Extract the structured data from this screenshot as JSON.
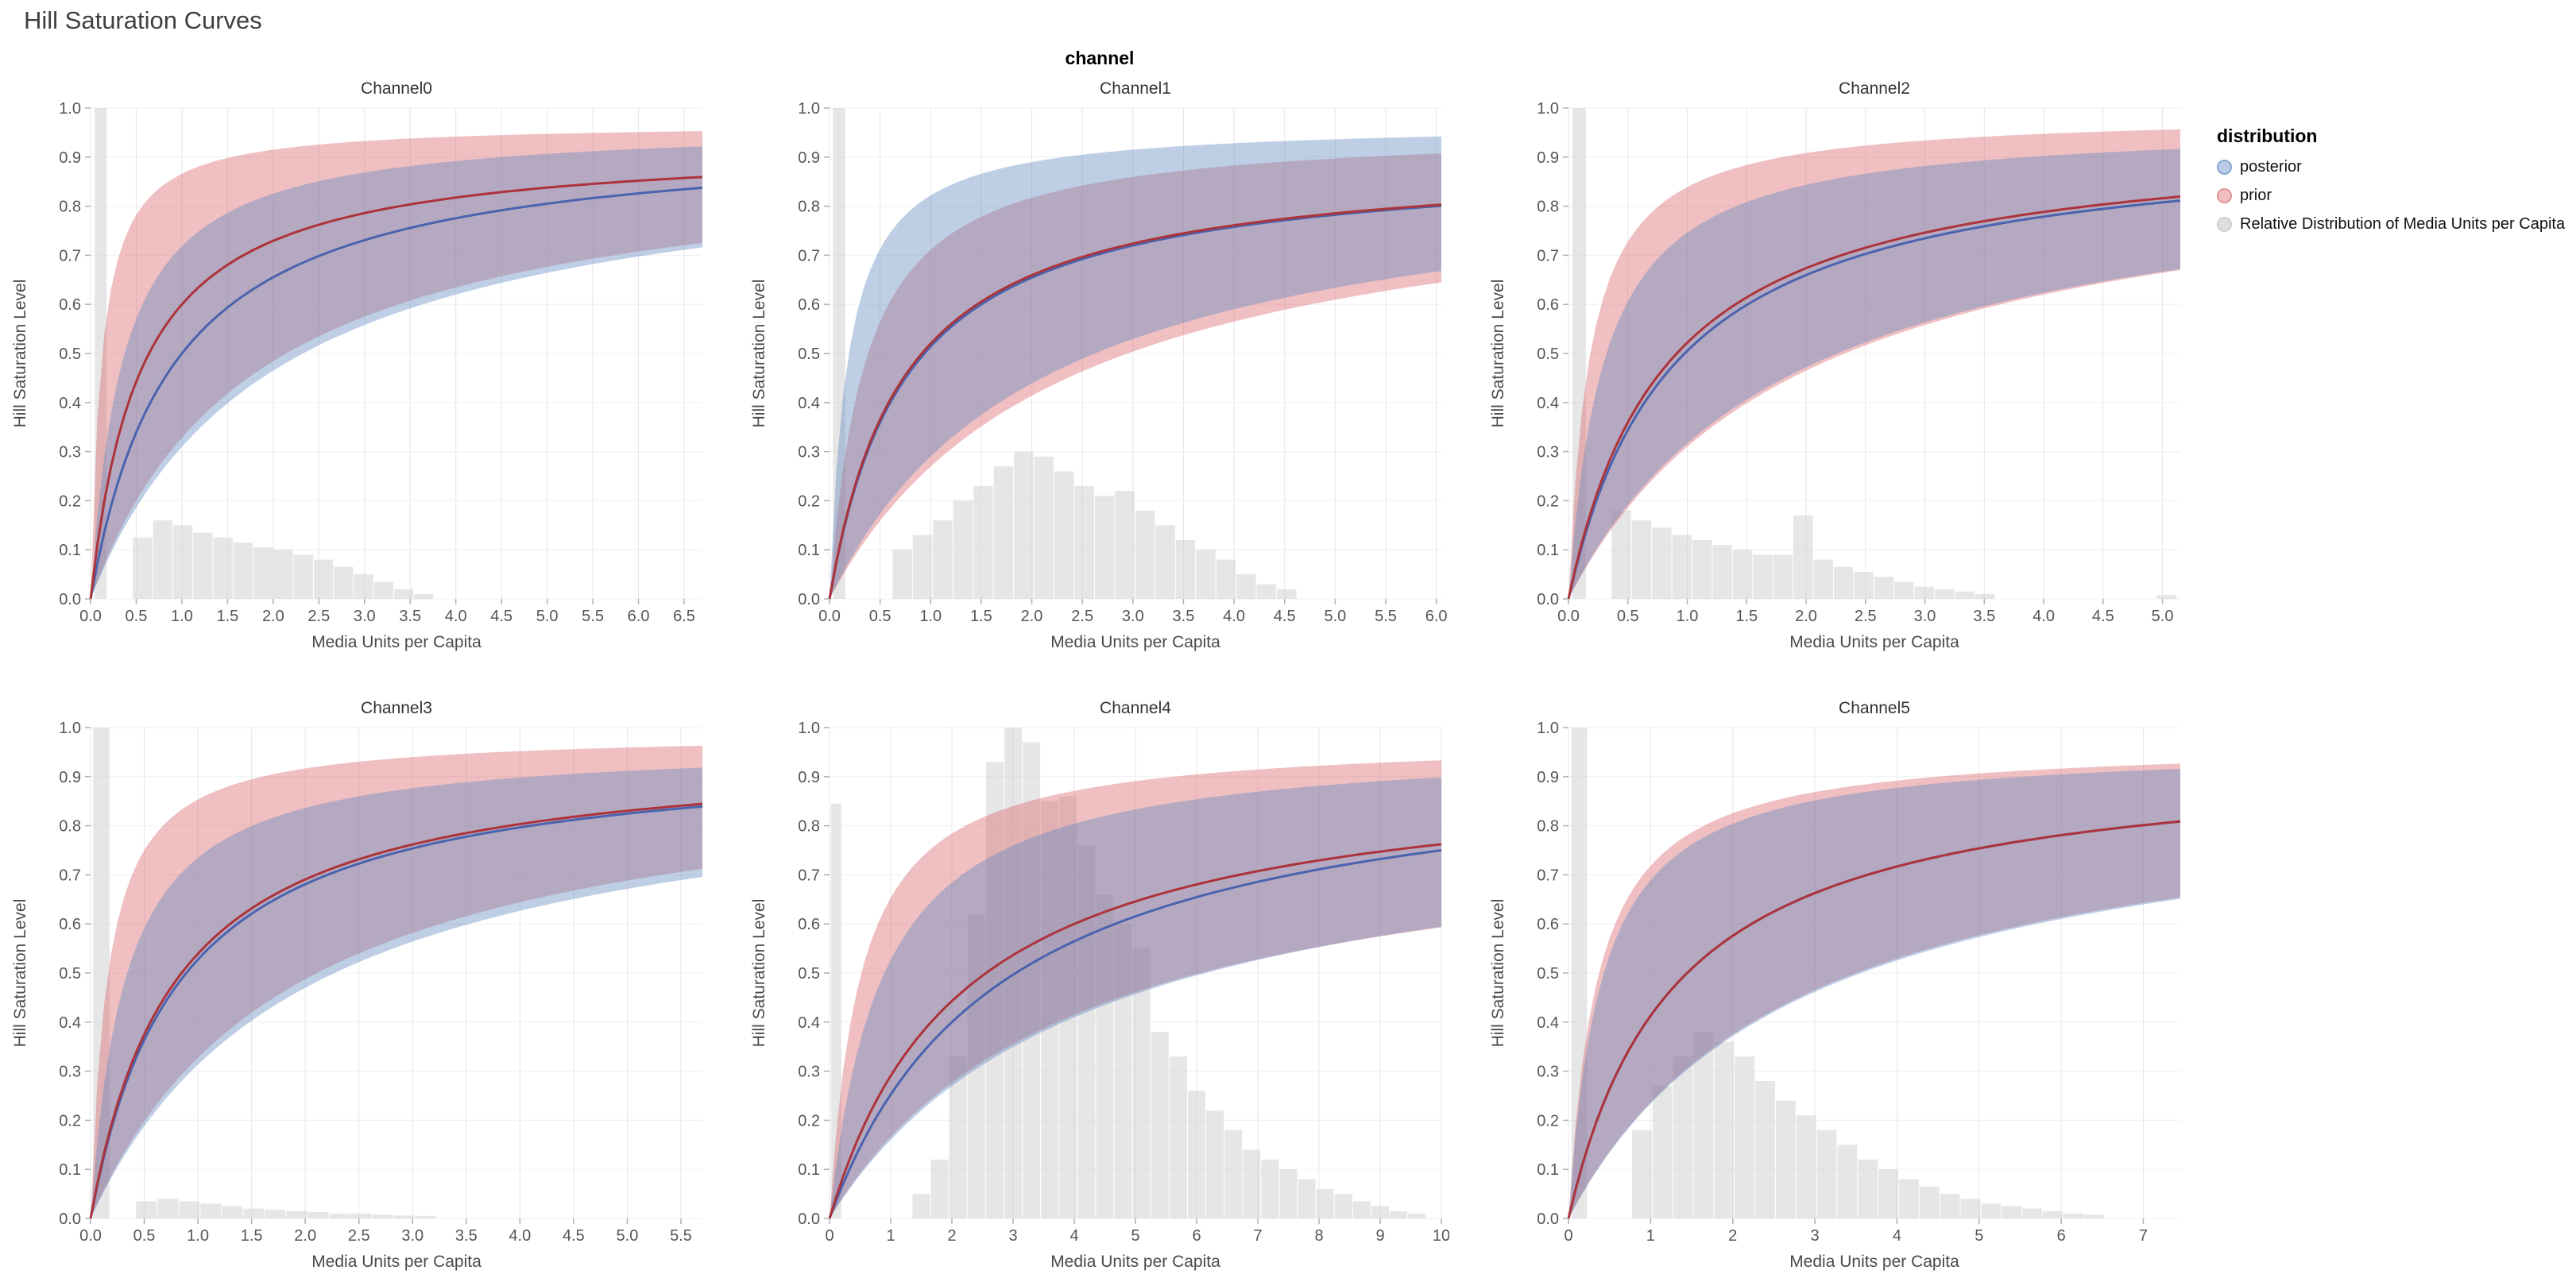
{
  "page": {
    "title": "Hill Saturation Curves",
    "facet_label": "channel"
  },
  "legend": {
    "title": "distribution",
    "items": [
      {
        "label": "posterior",
        "fill": "rgba(130,162,210,0.55)",
        "stroke": "#89a7d4"
      },
      {
        "label": "prior",
        "fill": "rgba(231,138,142,0.55)",
        "stroke": "#de9296"
      },
      {
        "label": "Relative Distribution of Media Units per Capita",
        "fill": "rgba(205,205,205,0.65)",
        "stroke": "#cfcfcf"
      }
    ]
  },
  "style": {
    "posterior_line": "#4a63ae",
    "prior_line": "#ac3339",
    "posterior_band": "rgba(99,139,193,0.42)",
    "prior_band": "rgba(214,96,102,0.40)",
    "hist_fill": "rgba(210,210,210,0.55)",
    "grid_x": "#e7e7e7",
    "grid_y": "#f0f0f0",
    "tick_color": "#b0b0b0"
  },
  "chart_data": [
    {
      "type": "line",
      "title": "Channel0",
      "xlabel": "Media Units per Capita",
      "ylabel": "Hill Saturation Level",
      "xlim": [
        0,
        6.7
      ],
      "ylim": [
        0,
        1
      ],
      "xticks": {
        "values": [
          0,
          0.5,
          1,
          1.5,
          2,
          2.5,
          3,
          3.5,
          4,
          4.5,
          5,
          5.5,
          6,
          6.5
        ],
        "labels": [
          "0.0",
          "0.5",
          "1.0",
          "1.5",
          "2.0",
          "2.5",
          "3.0",
          "3.5",
          "4.0",
          "4.5",
          "5.0",
          "5.5",
          "6.0",
          "6.5"
        ]
      },
      "yticks": {
        "values": [
          0,
          0.1,
          0.2,
          0.3,
          0.4,
          0.5,
          0.6,
          0.7,
          0.8,
          0.9,
          1
        ],
        "labels": [
          "0.0",
          "0.1",
          "0.2",
          "0.3",
          "0.4",
          "0.5",
          "0.6",
          "0.7",
          "0.8",
          "0.9",
          "1.0"
        ]
      },
      "series": [
        {
          "name": "posterior",
          "curve": "hill",
          "mean": {
            "a": 0.95,
            "k": 0.9
          },
          "lower": {
            "a": 0.93,
            "k": 2.0
          },
          "upper": {
            "a": 0.97,
            "k": 0.35
          }
        },
        {
          "name": "prior",
          "curve": "hill",
          "mean": {
            "a": 0.93,
            "k": 0.55
          },
          "lower": {
            "a": 0.92,
            "k": 1.8
          },
          "upper": {
            "a": 0.97,
            "k": 0.12
          }
        }
      ],
      "histogram": {
        "bin_width": 0.22,
        "bars": [
          [
            0.04,
            1.0,
            0.14
          ],
          [
            0.46,
            0.125
          ],
          [
            0.68,
            0.16
          ],
          [
            0.9,
            0.15
          ],
          [
            1.12,
            0.135
          ],
          [
            1.34,
            0.125
          ],
          [
            1.56,
            0.115
          ],
          [
            1.78,
            0.105
          ],
          [
            2.0,
            0.1
          ],
          [
            2.22,
            0.09
          ],
          [
            2.44,
            0.08
          ],
          [
            2.66,
            0.065
          ],
          [
            2.88,
            0.05
          ],
          [
            3.1,
            0.035
          ],
          [
            3.32,
            0.02
          ],
          [
            3.54,
            0.01
          ]
        ]
      }
    },
    {
      "type": "line",
      "title": "Channel1",
      "xlabel": "Media Units per Capita",
      "ylabel": "Hill Saturation Level",
      "xlim": [
        0,
        6.05
      ],
      "ylim": [
        0,
        1
      ],
      "xticks": {
        "values": [
          0,
          0.5,
          1,
          1.5,
          2,
          2.5,
          3,
          3.5,
          4,
          4.5,
          5,
          5.5,
          6
        ],
        "labels": [
          "0.0",
          "0.5",
          "1.0",
          "1.5",
          "2.0",
          "2.5",
          "3.0",
          "3.5",
          "4.0",
          "4.5",
          "5.0",
          "5.5",
          "6.0"
        ]
      },
      "yticks": {
        "values": [
          0,
          0.1,
          0.2,
          0.3,
          0.4,
          0.5,
          0.6,
          0.7,
          0.8,
          0.9,
          1
        ],
        "labels": [
          "0.0",
          "0.1",
          "0.2",
          "0.3",
          "0.4",
          "0.5",
          "0.6",
          "0.7",
          "0.8",
          "0.9",
          "1.0"
        ]
      },
      "series": [
        {
          "name": "posterior",
          "curve": "hill",
          "mean": {
            "a": 0.9,
            "k": 0.75
          },
          "lower": {
            "a": 0.9,
            "k": 2.1
          },
          "upper": {
            "a": 0.97,
            "k": 0.18
          }
        },
        {
          "name": "prior",
          "curve": "hill",
          "mean": {
            "a": 0.9,
            "k": 0.73
          },
          "lower": {
            "a": 0.89,
            "k": 2.3
          },
          "upper": {
            "a": 0.96,
            "k": 0.35
          }
        }
      ],
      "histogram": {
        "bin_width": 0.2,
        "bars": [
          [
            0.03,
            1.0,
            0.13
          ],
          [
            0.62,
            0.1
          ],
          [
            0.82,
            0.13
          ],
          [
            1.02,
            0.16
          ],
          [
            1.22,
            0.2
          ],
          [
            1.42,
            0.23
          ],
          [
            1.62,
            0.27
          ],
          [
            1.82,
            0.3
          ],
          [
            2.02,
            0.29
          ],
          [
            2.22,
            0.26
          ],
          [
            2.42,
            0.23
          ],
          [
            2.62,
            0.21
          ],
          [
            2.82,
            0.22
          ],
          [
            3.02,
            0.18
          ],
          [
            3.22,
            0.15
          ],
          [
            3.42,
            0.12
          ],
          [
            3.62,
            0.1
          ],
          [
            3.82,
            0.08
          ],
          [
            4.02,
            0.05
          ],
          [
            4.22,
            0.03
          ],
          [
            4.42,
            0.02
          ]
        ]
      }
    },
    {
      "type": "line",
      "title": "Channel2",
      "xlabel": "Media Units per Capita",
      "ylabel": "Hill Saturation Level",
      "xlim": [
        0,
        5.15
      ],
      "ylim": [
        0,
        1
      ],
      "xticks": {
        "values": [
          0,
          0.5,
          1,
          1.5,
          2,
          2.5,
          3,
          3.5,
          4,
          4.5,
          5
        ],
        "labels": [
          "0.0",
          "0.5",
          "1.0",
          "1.5",
          "2.0",
          "2.5",
          "3.0",
          "3.5",
          "4.0",
          "4.5",
          "5.0"
        ]
      },
      "yticks": {
        "values": [
          0,
          0.1,
          0.2,
          0.3,
          0.4,
          0.5,
          0.6,
          0.7,
          0.8,
          0.9,
          1
        ],
        "labels": [
          "0.0",
          "0.1",
          "0.2",
          "0.3",
          "0.4",
          "0.5",
          "0.6",
          "0.7",
          "0.8",
          "0.9",
          "1.0"
        ]
      },
      "series": [
        {
          "name": "posterior",
          "curve": "hill",
          "mean": {
            "a": 0.95,
            "k": 0.88
          },
          "lower": {
            "a": 0.92,
            "k": 1.9
          },
          "upper": {
            "a": 0.97,
            "k": 0.3
          }
        },
        {
          "name": "prior",
          "curve": "hill",
          "mean": {
            "a": 0.95,
            "k": 0.82
          },
          "lower": {
            "a": 0.93,
            "k": 2.0
          },
          "upper": {
            "a": 0.99,
            "k": 0.18
          }
        }
      ],
      "histogram": {
        "bin_width": 0.17,
        "bars": [
          [
            0.03,
            1.0,
            0.12
          ],
          [
            0.36,
            0.18
          ],
          [
            0.53,
            0.16
          ],
          [
            0.7,
            0.145
          ],
          [
            0.87,
            0.13
          ],
          [
            1.04,
            0.12
          ],
          [
            1.21,
            0.11
          ],
          [
            1.38,
            0.1
          ],
          [
            1.55,
            0.09
          ],
          [
            1.72,
            0.09
          ],
          [
            1.89,
            0.17
          ],
          [
            2.06,
            0.08
          ],
          [
            2.23,
            0.065
          ],
          [
            2.4,
            0.055
          ],
          [
            2.57,
            0.045
          ],
          [
            2.74,
            0.035
          ],
          [
            2.91,
            0.025
          ],
          [
            3.08,
            0.02
          ],
          [
            3.25,
            0.015
          ],
          [
            3.42,
            0.01
          ],
          [
            4.95,
            0.008
          ]
        ]
      }
    },
    {
      "type": "line",
      "title": "Channel3",
      "xlabel": "Media Units per Capita",
      "ylabel": "Hill Saturation Level",
      "xlim": [
        0,
        5.7
      ],
      "ylim": [
        0,
        1
      ],
      "xticks": {
        "values": [
          0,
          0.5,
          1,
          1.5,
          2,
          2.5,
          3,
          3.5,
          4,
          4.5,
          5,
          5.5
        ],
        "labels": [
          "0.0",
          "0.5",
          "1.0",
          "1.5",
          "2.0",
          "2.5",
          "3.0",
          "3.5",
          "4.0",
          "4.5",
          "5.0",
          "5.5"
        ]
      },
      "yticks": {
        "values": [
          0,
          0.1,
          0.2,
          0.3,
          0.4,
          0.5,
          0.6,
          0.7,
          0.8,
          0.9,
          1
        ],
        "labels": [
          "0.0",
          "0.1",
          "0.2",
          "0.3",
          "0.4",
          "0.5",
          "0.6",
          "0.7",
          "0.8",
          "0.9",
          "1.0"
        ]
      },
      "series": [
        {
          "name": "posterior",
          "curve": "hill",
          "mean": {
            "a": 0.96,
            "k": 0.82
          },
          "lower": {
            "a": 0.94,
            "k": 2.0
          },
          "upper": {
            "a": 0.97,
            "k": 0.32
          }
        },
        {
          "name": "prior",
          "curve": "hill",
          "mean": {
            "a": 0.96,
            "k": 0.78
          },
          "lower": {
            "a": 0.95,
            "k": 1.9
          },
          "upper": {
            "a": 0.99,
            "k": 0.16
          }
        }
      ],
      "histogram": {
        "bin_width": 0.2,
        "bars": [
          [
            0.02,
            1.0,
            0.16
          ],
          [
            0.42,
            0.035
          ],
          [
            0.62,
            0.04
          ],
          [
            0.82,
            0.035
          ],
          [
            1.02,
            0.03
          ],
          [
            1.22,
            0.025
          ],
          [
            1.42,
            0.02
          ],
          [
            1.62,
            0.018
          ],
          [
            1.82,
            0.015
          ],
          [
            2.02,
            0.013
          ],
          [
            2.22,
            0.01
          ],
          [
            2.42,
            0.01
          ],
          [
            2.62,
            0.008
          ],
          [
            2.82,
            0.006
          ],
          [
            3.02,
            0.005
          ]
        ]
      }
    },
    {
      "type": "line",
      "title": "Channel4",
      "xlabel": "Media Units per Capita",
      "ylabel": "Hill Saturation Level",
      "xlim": [
        0,
        10.0
      ],
      "ylim": [
        0,
        1
      ],
      "xticks": {
        "values": [
          0,
          1,
          2,
          3,
          4,
          5,
          6,
          7,
          8,
          9,
          10
        ],
        "labels": [
          "0",
          "1",
          "2",
          "3",
          "4",
          "5",
          "6",
          "7",
          "8",
          "9",
          "10"
        ]
      },
      "yticks": {
        "values": [
          0,
          0.1,
          0.2,
          0.3,
          0.4,
          0.5,
          0.6,
          0.7,
          0.8,
          0.9,
          1
        ],
        "labels": [
          "0.0",
          "0.1",
          "0.2",
          "0.3",
          "0.4",
          "0.5",
          "0.6",
          "0.7",
          "0.8",
          "0.9",
          "1.0"
        ]
      },
      "series": [
        {
          "name": "posterior",
          "curve": "hill",
          "mean": {
            "a": 0.96,
            "k": 2.8
          },
          "lower": {
            "a": 0.85,
            "k": 4.3
          },
          "upper": {
            "a": 0.975,
            "k": 0.85
          }
        },
        {
          "name": "prior",
          "curve": "hill",
          "mean": {
            "a": 0.93,
            "k": 2.2
          },
          "lower": {
            "a": 0.83,
            "k": 4.0
          },
          "upper": {
            "a": 0.98,
            "k": 0.5
          }
        }
      ],
      "histogram": {
        "bin_width": 0.3,
        "bars": [
          [
            0.02,
            0.845,
            0.18
          ],
          [
            1.35,
            0.05
          ],
          [
            1.65,
            0.12
          ],
          [
            1.95,
            0.33
          ],
          [
            2.25,
            0.62
          ],
          [
            2.55,
            0.93
          ],
          [
            2.85,
            1.0
          ],
          [
            3.15,
            0.97
          ],
          [
            3.45,
            0.85
          ],
          [
            3.75,
            0.86
          ],
          [
            4.05,
            0.76
          ],
          [
            4.35,
            0.66
          ],
          [
            4.65,
            0.6
          ],
          [
            4.95,
            0.55
          ],
          [
            5.25,
            0.38
          ],
          [
            5.55,
            0.33
          ],
          [
            5.85,
            0.26
          ],
          [
            6.15,
            0.22
          ],
          [
            6.45,
            0.18
          ],
          [
            6.75,
            0.14
          ],
          [
            7.05,
            0.12
          ],
          [
            7.35,
            0.1
          ],
          [
            7.65,
            0.08
          ],
          [
            7.95,
            0.06
          ],
          [
            8.25,
            0.05
          ],
          [
            8.55,
            0.035
          ],
          [
            8.85,
            0.025
          ],
          [
            9.15,
            0.015
          ],
          [
            9.45,
            0.01
          ]
        ]
      }
    },
    {
      "type": "line",
      "title": "Channel5",
      "xlabel": "Media Units per Capita",
      "ylabel": "Hill Saturation Level",
      "xlim": [
        0,
        7.45
      ],
      "ylim": [
        0,
        1
      ],
      "xticks": {
        "values": [
          0,
          1,
          2,
          3,
          4,
          5,
          6,
          7
        ],
        "labels": [
          "0",
          "1",
          "2",
          "3",
          "4",
          "5",
          "6",
          "7"
        ]
      },
      "yticks": {
        "values": [
          0,
          0.1,
          0.2,
          0.3,
          0.4,
          0.5,
          0.6,
          0.7,
          0.8,
          0.9,
          1
        ],
        "labels": [
          "0.0",
          "0.1",
          "0.2",
          "0.3",
          "0.4",
          "0.5",
          "0.6",
          "0.7",
          "0.8",
          "0.9",
          "1.0"
        ]
      },
      "series": [
        {
          "name": "posterior",
          "curve": "hill",
          "mean": {
            "a": 0.95,
            "k": 1.3
          },
          "lower": {
            "a": 0.9,
            "k": 2.85
          },
          "upper": {
            "a": 0.965,
            "k": 0.4
          }
        },
        {
          "name": "prior",
          "curve": "hill",
          "mean": {
            "a": 0.95,
            "k": 1.3
          },
          "lower": {
            "a": 0.9,
            "k": 2.8
          },
          "upper": {
            "a": 0.97,
            "k": 0.35
          }
        }
      ],
      "histogram": {
        "bin_width": 0.25,
        "bars": [
          [
            0.03,
            1.0,
            0.2
          ],
          [
            0.77,
            0.18
          ],
          [
            1.02,
            0.27
          ],
          [
            1.27,
            0.33
          ],
          [
            1.52,
            0.38
          ],
          [
            1.77,
            0.36
          ],
          [
            2.02,
            0.33
          ],
          [
            2.27,
            0.28
          ],
          [
            2.52,
            0.24
          ],
          [
            2.77,
            0.21
          ],
          [
            3.02,
            0.18
          ],
          [
            3.27,
            0.15
          ],
          [
            3.52,
            0.12
          ],
          [
            3.77,
            0.1
          ],
          [
            4.02,
            0.08
          ],
          [
            4.27,
            0.065
          ],
          [
            4.52,
            0.05
          ],
          [
            4.77,
            0.04
          ],
          [
            5.02,
            0.03
          ],
          [
            5.27,
            0.025
          ],
          [
            5.52,
            0.02
          ],
          [
            5.77,
            0.015
          ],
          [
            6.02,
            0.01
          ],
          [
            6.27,
            0.008
          ]
        ]
      }
    }
  ]
}
